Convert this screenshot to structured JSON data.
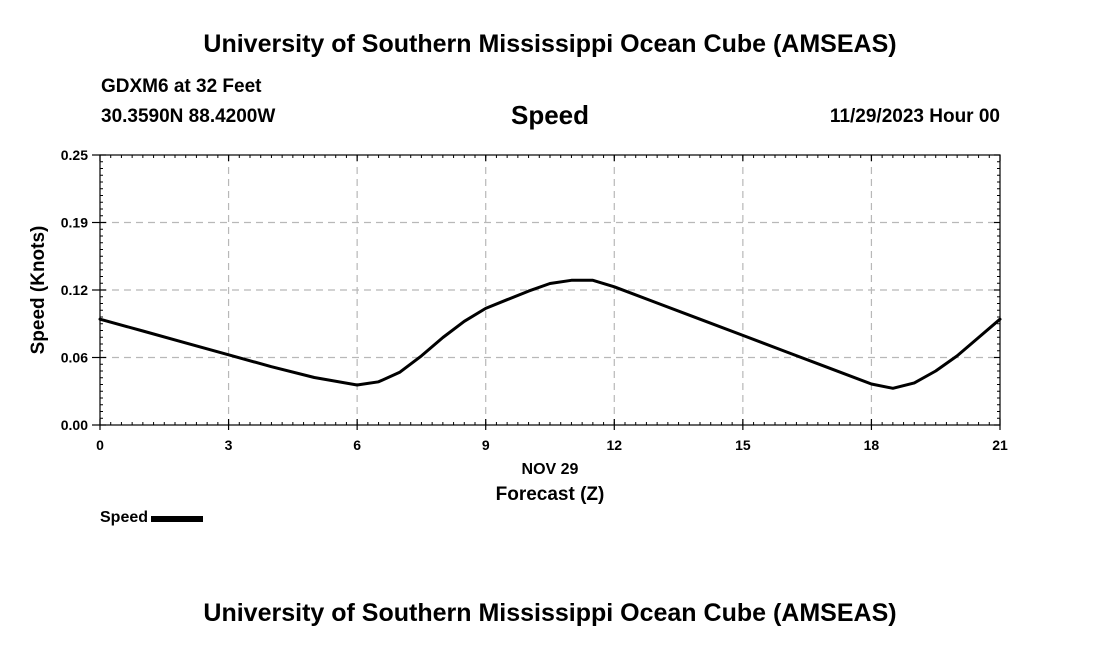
{
  "header": {
    "title": "University of Southern Mississippi Ocean Cube (AMSEAS)",
    "station_name": "GDXM6 at 32 Feet",
    "station_coords": "30.3590N  88.4200W",
    "forecast_time": "11/29/2023 Hour 00"
  },
  "footer": {
    "title": "University of Southern Mississippi Ocean Cube (AMSEAS)"
  },
  "legend": {
    "label": "Speed"
  },
  "chart_data": {
    "type": "line",
    "title": "Speed",
    "xlabel": "Forecast (Z)",
    "x_date_label": "NOV 29",
    "ylabel": "Speed (Knots)",
    "xlim": [
      0,
      21
    ],
    "ylim": [
      0,
      0.25
    ],
    "x_ticks": [
      0,
      3,
      6,
      9,
      12,
      15,
      18,
      21
    ],
    "x_tick_labels": [
      "0",
      "3",
      "6",
      "9",
      "12",
      "15",
      "18",
      "21"
    ],
    "y_ticks": [
      0.0,
      0.0625,
      0.125,
      0.1875,
      0.25
    ],
    "y_tick_labels": [
      "0.00",
      "0.06",
      "0.12",
      "0.19",
      "0.25"
    ],
    "grid": true,
    "legend_position": "bottom-left",
    "line_color": "#000000",
    "series": [
      {
        "name": "Speed",
        "x": [
          0,
          1,
          2,
          3,
          4,
          5,
          6,
          6.5,
          7,
          7.5,
          8,
          8.5,
          9,
          9.5,
          10,
          10.5,
          11,
          11.5,
          12,
          13,
          14,
          15,
          16,
          17,
          18,
          18.5,
          19,
          19.5,
          20,
          20.5,
          21
        ],
        "values": [
          0.098,
          0.087,
          0.076,
          0.065,
          0.054,
          0.044,
          0.037,
          0.04,
          0.049,
          0.064,
          0.081,
          0.096,
          0.108,
          0.116,
          0.124,
          0.131,
          0.134,
          0.134,
          0.128,
          0.113,
          0.098,
          0.083,
          0.068,
          0.053,
          0.038,
          0.034,
          0.039,
          0.05,
          0.064,
          0.081,
          0.098
        ]
      }
    ]
  }
}
